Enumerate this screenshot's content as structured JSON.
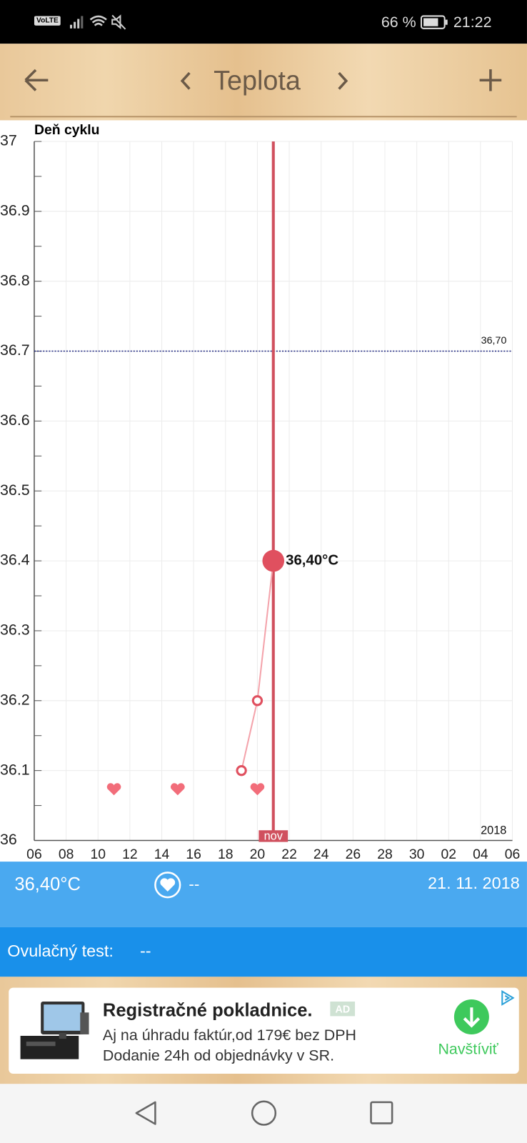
{
  "status_bar": {
    "network": "VoLTE",
    "battery": "66 %",
    "time": "21:22"
  },
  "toolbar": {
    "title": "Teplota"
  },
  "chart_data": {
    "type": "line",
    "x_label": "Deň cyklu",
    "x": [
      "2018-11-19",
      "2018-11-20",
      "2018-11-21"
    ],
    "values": [
      36.1,
      36.2,
      36.4
    ],
    "value_labels": [
      null,
      null,
      "36,40°C"
    ],
    "color": "#e0505f",
    "selected_date": "2018-11-21",
    "month_label": "nov",
    "year_label": "2018",
    "intercourse_days": [
      "2018-11-11",
      "2018-11-15",
      "2018-11-20"
    ],
    "reference_line": {
      "value": 36.7,
      "label": "36,70"
    },
    "xlim": [
      "2018-11-06",
      "2018-12-06"
    ],
    "xticks": [
      {
        "value": "2018-11-06",
        "label": "06"
      },
      {
        "value": "2018-11-08",
        "label": "08"
      },
      {
        "value": "2018-11-10",
        "label": "10"
      },
      {
        "value": "2018-11-12",
        "label": "12"
      },
      {
        "value": "2018-11-14",
        "label": "14"
      },
      {
        "value": "2018-11-16",
        "label": "16"
      },
      {
        "value": "2018-11-18",
        "label": "18"
      },
      {
        "value": "2018-11-20",
        "label": "20"
      },
      {
        "value": "2018-11-22",
        "label": "22"
      },
      {
        "value": "2018-11-24",
        "label": "24"
      },
      {
        "value": "2018-11-26",
        "label": "26"
      },
      {
        "value": "2018-11-28",
        "label": "28"
      },
      {
        "value": "2018-11-30",
        "label": "30"
      },
      {
        "value": "2018-12-02",
        "label": "02"
      },
      {
        "value": "2018-12-04",
        "label": "04"
      },
      {
        "value": "2018-12-06",
        "label": "06"
      }
    ],
    "ylim": [
      36,
      37
    ],
    "yticks": [
      36,
      36.1,
      36.2,
      36.3,
      36.4,
      36.5,
      36.6,
      36.7,
      36.8,
      36.9,
      37
    ],
    "y_minor_ticks": [
      36.05,
      36.15,
      36.25,
      36.35,
      36.45,
      36.55,
      36.65,
      36.75,
      36.85,
      36.95
    ],
    "grid": true
  },
  "details": {
    "temperature": "36,40°C",
    "intercourse": "--",
    "date": "21. 11. 2018",
    "ovulation_test_label": "Ovulačný test:",
    "ovulation_test": "--"
  },
  "ad": {
    "title": "Registračné pokladnice.",
    "badge": "AD",
    "line1": "Aj na úhradu faktúr,od 179€ bez DPH",
    "line2": "Dodanie 24h od objednávky v SR.",
    "button": "Navštíviť"
  }
}
